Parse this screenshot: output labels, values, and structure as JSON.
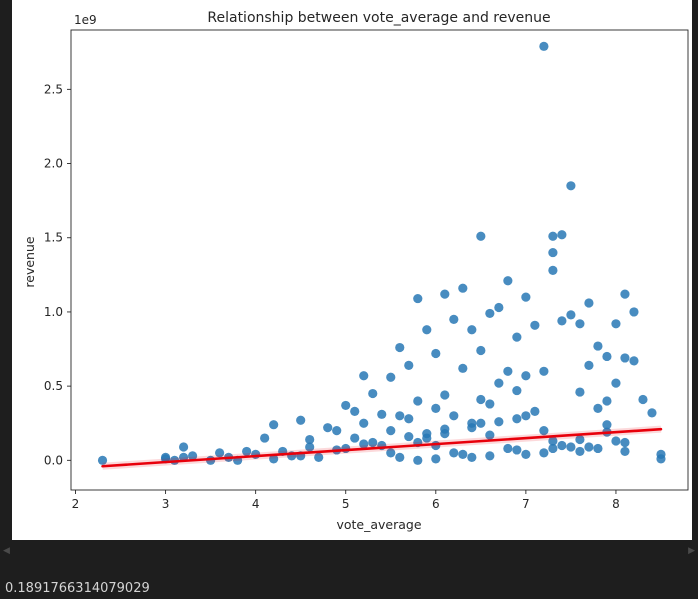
{
  "chart_data": {
    "type": "scatter",
    "title": "Relationship between vote_average and revenue",
    "xlabel": "vote_average",
    "ylabel": "revenue",
    "offset_label": "1e9",
    "xlim": [
      1.95,
      8.8
    ],
    "ylim": [
      -0.2,
      2.9
    ],
    "xticks": [
      2,
      3,
      4,
      5,
      6,
      7,
      8
    ],
    "yticks": [
      0.0,
      0.5,
      1.0,
      1.5,
      2.0,
      2.5
    ],
    "ytick_labels": [
      "0.0",
      "0.5",
      "1.0",
      "1.5",
      "2.0",
      "2.5"
    ],
    "grid": false,
    "point_color": "#2878b5",
    "line_color": "#e8000b",
    "regression_line": {
      "x": [
        2.3,
        8.5
      ],
      "y": [
        -0.04,
        0.21
      ]
    },
    "series": [
      {
        "x": [
          2.3,
          3.0,
          3.0,
          3.1,
          3.2,
          3.3,
          3.5,
          3.6,
          3.7,
          3.8,
          4.0,
          4.1,
          4.2,
          4.2,
          4.3,
          4.4,
          4.5,
          4.6,
          4.7,
          4.8,
          4.9,
          5.0,
          5.0,
          5.1,
          5.1,
          5.2,
          5.2,
          5.3,
          5.4,
          5.4,
          5.5,
          5.5,
          5.6,
          5.6,
          5.7,
          5.7,
          5.8,
          5.8,
          5.9,
          5.9,
          6.0,
          6.0,
          6.0,
          6.1,
          6.1,
          6.2,
          6.2,
          6.3,
          6.3,
          6.4,
          6.4,
          6.5,
          6.5,
          6.5,
          6.6,
          6.6,
          6.7,
          6.7,
          6.8,
          6.8,
          6.9,
          6.9,
          7.0,
          7.0,
          7.1,
          7.1,
          7.2,
          7.2,
          7.3,
          7.3,
          7.3,
          7.4,
          7.4,
          7.5,
          7.5,
          7.6,
          7.6,
          7.7,
          7.7,
          7.8,
          7.8,
          7.9,
          7.9,
          8.0,
          8.0,
          8.1,
          8.1,
          8.2,
          8.2,
          8.3,
          8.4,
          8.5,
          8.5,
          5.5,
          5.8,
          6.1,
          6.4,
          6.7,
          7.0,
          7.3,
          7.6,
          7.9,
          4.5,
          4.9,
          5.3,
          5.7,
          6.1,
          6.5,
          6.9,
          7.3,
          7.7,
          8.1,
          3.2,
          3.9,
          4.6,
          5.2,
          5.9,
          6.6,
          7.2,
          7.9,
          6.2,
          6.8,
          7.4,
          8.0,
          5.6,
          6.3,
          6.9,
          7.5,
          8.1,
          6.0,
          6.6,
          7.2,
          7.8,
          5.8,
          6.4,
          7.0,
          7.6
        ],
        "y": [
          0.0,
          0.02,
          0.01,
          0.0,
          0.09,
          0.03,
          0.0,
          0.05,
          0.02,
          0.0,
          0.04,
          0.15,
          0.24,
          0.01,
          0.06,
          0.03,
          0.27,
          0.14,
          0.02,
          0.22,
          0.2,
          0.37,
          0.08,
          0.33,
          0.15,
          0.57,
          0.25,
          0.45,
          0.1,
          0.31,
          0.56,
          0.2,
          0.76,
          0.3,
          0.64,
          0.28,
          1.09,
          0.4,
          0.88,
          0.18,
          0.72,
          0.35,
          0.1,
          1.12,
          0.44,
          0.95,
          0.3,
          1.16,
          0.62,
          0.88,
          0.25,
          1.51,
          0.74,
          0.41,
          0.99,
          0.38,
          1.03,
          0.52,
          1.21,
          0.6,
          0.83,
          0.47,
          1.1,
          0.57,
          0.91,
          0.33,
          2.79,
          0.6,
          1.51,
          1.4,
          1.28,
          1.52,
          0.94,
          1.85,
          0.98,
          0.92,
          0.46,
          1.06,
          0.64,
          0.77,
          0.35,
          0.7,
          0.4,
          0.92,
          0.52,
          1.12,
          0.69,
          1.0,
          0.67,
          0.41,
          0.32,
          0.04,
          0.01,
          0.05,
          0.12,
          0.18,
          0.22,
          0.26,
          0.3,
          0.08,
          0.14,
          0.19,
          0.03,
          0.07,
          0.12,
          0.16,
          0.21,
          0.25,
          0.28,
          0.13,
          0.09,
          0.06,
          0.02,
          0.06,
          0.09,
          0.11,
          0.15,
          0.17,
          0.2,
          0.24,
          0.05,
          0.08,
          0.1,
          0.13,
          0.02,
          0.04,
          0.07,
          0.09,
          0.12,
          0.01,
          0.03,
          0.05,
          0.08,
          0.0,
          0.02,
          0.04,
          0.06
        ]
      }
    ]
  },
  "output": {
    "text": "0.1891766314079029"
  }
}
